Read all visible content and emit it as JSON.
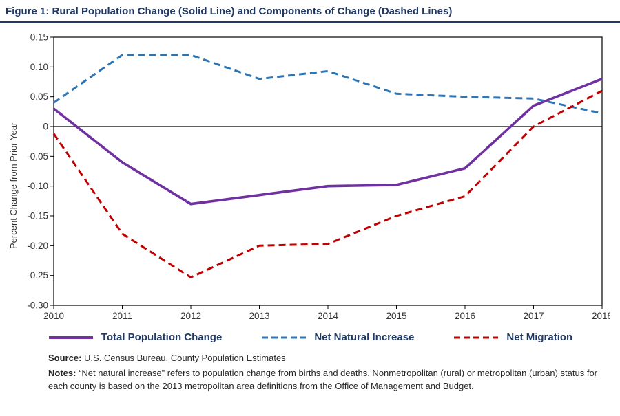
{
  "title": "Figure 1: Rural Population Change (Solid Line) and Components of Change (Dashed Lines)",
  "source_label": "Source:",
  "source_text": "U.S. Census Bureau, County Population Estimates",
  "notes_label": "Notes:",
  "notes_text": "“Net natural increase” refers to population change from births and deaths. Nonmetropolitan (rural) or metropolitan (urban) status for each county is based on the 2013 metropolitan area definitions from the Office of Management and Budget.",
  "colors": {
    "title_navy": "#1f3864",
    "axis": "#000000",
    "tick_text": "#333333"
  },
  "chart_data": {
    "type": "line",
    "title": "Figure 1: Rural Population Change (Solid Line) and Components of Change (Dashed Lines)",
    "xlabel": "",
    "ylabel": "Percent Change from Prior Year",
    "x": [
      2010,
      2011,
      2012,
      2013,
      2014,
      2015,
      2016,
      2017,
      2018
    ],
    "ylim": [
      -0.3,
      0.15
    ],
    "ytick_step": 0.05,
    "ytick_labels": [
      "0.15",
      "0.10",
      "0.05",
      "0",
      "-0.05",
      "-0.10",
      "-0.15",
      "-0.20",
      "-0.25",
      "-0.30"
    ],
    "grid": false,
    "legend_position": "bottom",
    "series": [
      {
        "name": "Total Population Change",
        "style": "solid",
        "color": "#7030a0",
        "values": [
          0.03,
          -0.06,
          -0.13,
          -0.115,
          -0.1,
          -0.098,
          -0.07,
          0.035,
          0.08
        ]
      },
      {
        "name": "Net Natural Increase",
        "style": "dashed",
        "color": "#2e75b6",
        "values": [
          0.04,
          0.12,
          0.12,
          0.08,
          0.093,
          0.055,
          0.05,
          0.047,
          0.022
        ]
      },
      {
        "name": "Net Migration",
        "style": "dashed",
        "color": "#c00000",
        "values": [
          -0.012,
          -0.18,
          -0.253,
          -0.2,
          -0.197,
          -0.15,
          -0.117,
          0.0,
          0.06
        ]
      }
    ]
  }
}
